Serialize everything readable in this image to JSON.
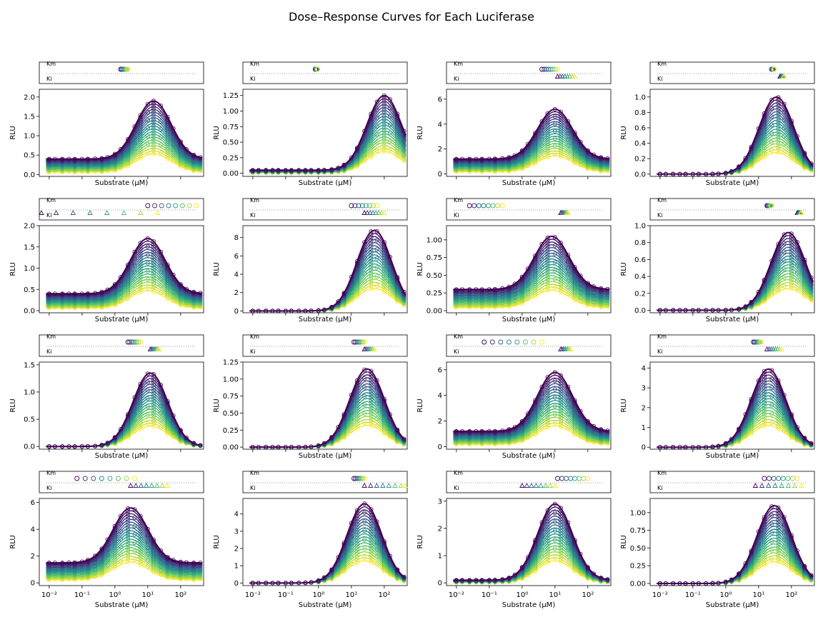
{
  "figure": {
    "title": "Dose–Response Curves for Each Luciferase",
    "xlabel": "Substrate (μM)",
    "ylabel": "RLU",
    "km_label": "Km",
    "ki_label": "Ki",
    "x_tick_labels": [
      "10⁻²",
      "10⁻¹",
      "10⁰",
      "10¹",
      "10²"
    ]
  },
  "chart_data": {
    "type": "line",
    "xscale": "log",
    "xlim": [
      0.005,
      500
    ],
    "concentrations": [
      0.01,
      0.015,
      0.025,
      0.04,
      0.06,
      0.1,
      0.15,
      0.25,
      0.4,
      0.6,
      1,
      1.5,
      2.5,
      4,
      6,
      10,
      15,
      25,
      40,
      60,
      100,
      150,
      250,
      400
    ],
    "colormap": [
      "#440154",
      "#3b528b",
      "#21918c",
      "#5ec962",
      "#fde725"
    ],
    "series_count": 20,
    "panels": [
      {
        "id": 1,
        "ylim": [
          -0.05,
          2.2
        ],
        "yticks": [
          0.0,
          0.5,
          1.0,
          1.5,
          2.0
        ],
        "dec": 1,
        "top_series_values": {
          "base": 0.4,
          "peak_x": 15,
          "peak": 1.9
        },
        "km": [
          1.5,
          2.5
        ],
        "ki": null
      },
      {
        "id": 2,
        "ylim": [
          -0.05,
          1.35
        ],
        "yticks": [
          0.0,
          0.25,
          0.5,
          0.75,
          1.0,
          1.25
        ],
        "dec": 2,
        "top_series_values": {
          "base": 0.05,
          "peak_x": 100,
          "peak": 1.25
        },
        "km": [
          0.8,
          0.95
        ],
        "ki": null
      },
      {
        "id": 3,
        "ylim": [
          -0.2,
          6.8
        ],
        "yticks": [
          0,
          2,
          4,
          6
        ],
        "dec": 0,
        "top_series_values": {
          "base": 1.2,
          "peak_x": 10,
          "peak": 5.2
        },
        "km": [
          4,
          12
        ],
        "ki": [
          12,
          40
        ]
      },
      {
        "id": 4,
        "ylim": [
          -0.03,
          1.1
        ],
        "yticks": [
          0.0,
          0.2,
          0.4,
          0.6,
          0.8,
          1.0
        ],
        "dec": 1,
        "top_series_values": {
          "base": 0.0,
          "peak_x": 35,
          "peak": 1.0
        },
        "km": [
          25,
          30
        ],
        "ki": [
          45,
          60
        ]
      },
      {
        "id": 5,
        "ylim": [
          -0.05,
          2.0
        ],
        "yticks": [
          0.0,
          0.5,
          1.0,
          1.5,
          2.0
        ],
        "dec": 1,
        "top_series_values": {
          "base": 0.4,
          "peak_x": 10,
          "peak": 1.7
        },
        "km": [
          10,
          300
        ],
        "ki": [
          0.005,
          20
        ]
      },
      {
        "id": 6,
        "ylim": [
          -0.2,
          9.3
        ],
        "yticks": [
          0,
          2,
          4,
          6,
          8
        ],
        "dec": 0,
        "top_series_values": {
          "base": 0.0,
          "peak_x": 50,
          "peak": 8.8
        },
        "km": [
          10,
          60
        ],
        "ki": [
          25,
          100
        ]
      },
      {
        "id": 7,
        "ylim": [
          -0.03,
          1.2
        ],
        "yticks": [
          0.0,
          0.25,
          0.5,
          0.75,
          1.0
        ],
        "dec": 2,
        "top_series_values": {
          "base": 0.3,
          "peak_x": 8,
          "peak": 1.05
        },
        "km": [
          0.025,
          0.25
        ],
        "ki": [
          15,
          25
        ]
      },
      {
        "id": 8,
        "ylim": [
          -0.03,
          1.0
        ],
        "yticks": [
          0.0,
          0.2,
          0.4,
          0.6,
          0.8,
          1.0
        ],
        "dec": 1,
        "top_series_values": {
          "base": 0.0,
          "peak_x": 80,
          "peak": 0.92
        },
        "km": [
          18,
          25
        ],
        "ki": [
          150,
          200
        ]
      },
      {
        "id": 9,
        "ylim": [
          -0.05,
          1.55
        ],
        "yticks": [
          0.0,
          0.5,
          1.0,
          1.5
        ],
        "dec": 1,
        "top_series_values": {
          "base": 0.0,
          "peak_x": 12,
          "peak": 1.35
        },
        "km": [
          2.5,
          6
        ],
        "ki": [
          12,
          22
        ]
      },
      {
        "id": 10,
        "ylim": [
          -0.03,
          1.25
        ],
        "yticks": [
          0.0,
          0.25,
          0.5,
          0.75,
          1.0,
          1.25
        ],
        "dec": 2,
        "top_series_values": {
          "base": 0.0,
          "peak_x": 30,
          "peak": 1.15
        },
        "km": [
          12,
          25
        ],
        "ki": [
          25,
          50
        ]
      },
      {
        "id": 11,
        "ylim": [
          -0.2,
          6.6
        ],
        "yticks": [
          0,
          2,
          4,
          6
        ],
        "dec": 0,
        "top_series_values": {
          "base": 1.2,
          "peak_x": 10,
          "peak": 5.8
        },
        "km": [
          0.07,
          4
        ],
        "ki": [
          15,
          30
        ]
      },
      {
        "id": 12,
        "ylim": [
          -0.1,
          4.3
        ],
        "yticks": [
          0,
          1,
          2,
          3,
          4
        ],
        "dec": 0,
        "top_series_values": {
          "base": 0.0,
          "peak_x": 20,
          "peak": 3.95
        },
        "km": [
          7,
          12
        ],
        "ki": [
          18,
          50
        ]
      },
      {
        "id": 13,
        "ylim": [
          -0.2,
          6.3
        ],
        "yticks": [
          0,
          2,
          4,
          6
        ],
        "dec": 0,
        "top_series_values": {
          "base": 1.5,
          "peak_x": 3,
          "peak": 5.6
        },
        "km": [
          0.07,
          4
        ],
        "ki": [
          3,
          40
        ]
      },
      {
        "id": 14,
        "ylim": [
          -0.15,
          4.9
        ],
        "yticks": [
          0,
          1,
          2,
          3,
          4
        ],
        "dec": 0,
        "top_series_values": {
          "base": 0.0,
          "peak_x": 25,
          "peak": 4.6
        },
        "km": [
          12,
          25
        ],
        "ki": [
          25,
          500
        ]
      },
      {
        "id": 15,
        "ylim": [
          -0.1,
          3.1
        ],
        "yticks": [
          0,
          1,
          2,
          3
        ],
        "dec": 0,
        "top_series_values": {
          "base": 0.1,
          "peak_x": 10,
          "peak": 2.9
        },
        "km": [
          12,
          100
        ],
        "ki": [
          1,
          10
        ]
      },
      {
        "id": 16,
        "ylim": [
          -0.03,
          1.2
        ],
        "yticks": [
          0.0,
          0.25,
          0.5,
          0.75,
          1.0
        ],
        "dec": 2,
        "top_series_values": {
          "base": 0.0,
          "peak_x": 30,
          "peak": 1.1
        },
        "km": [
          15,
          150
        ],
        "ki": [
          8,
          200
        ]
      }
    ]
  }
}
